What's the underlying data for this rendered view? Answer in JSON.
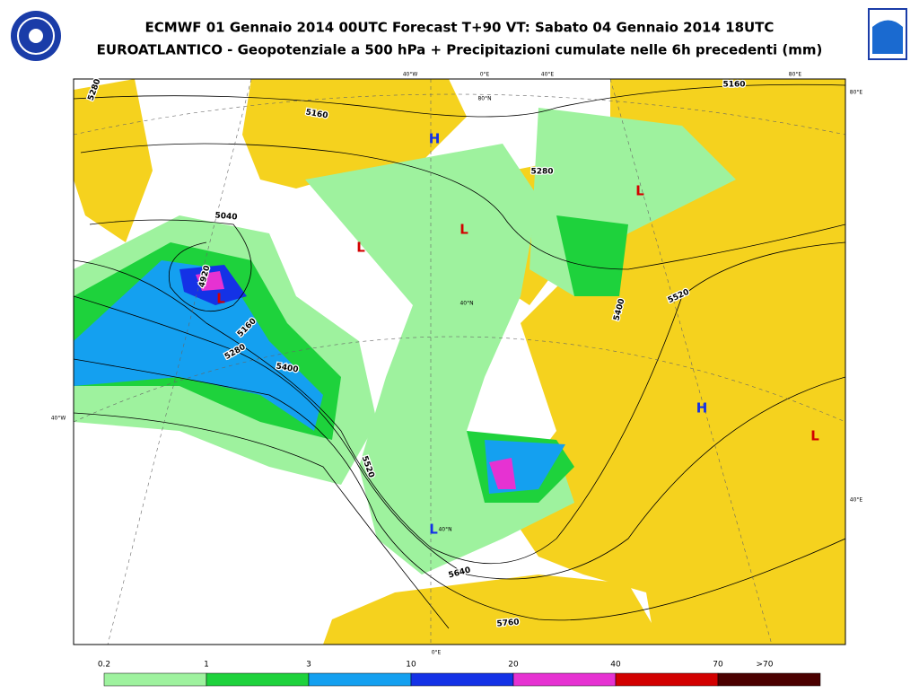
{
  "header": {
    "title": "ECMWF 01 Gennaio 2014 00UTC Forecast T+90 VT: Sabato 04 Gennaio 2014 18UTC",
    "subtitle": "EUROATLANTICO - Geopotenziale a 500 hPa + Precipitazioni cumulate nelle 6h precedenti (mm)"
  },
  "map": {
    "contour_labels": [
      "5280",
      "5160",
      "5040",
      "4920",
      "5160",
      "5280",
      "5400",
      "5520",
      "5640",
      "5760",
      "5520",
      "5400",
      "5280",
      "5160"
    ],
    "pressure_centers": [
      "H",
      "L",
      "L",
      "L",
      "L",
      "H",
      "L",
      "L"
    ],
    "grid_labels": [
      "40°W",
      "0°E",
      "40°E",
      "80°E",
      "80°E",
      "80°N",
      "40°N",
      "40°W",
      "40°E",
      "40°N",
      "0°E"
    ]
  },
  "legend": {
    "labels": [
      "0.2",
      "1",
      "3",
      "10",
      "20",
      "40",
      "70",
      ">70"
    ],
    "colors": [
      "#9ef29e",
      "#1ed23c",
      "#14a0f0",
      "#1432e6",
      "#e632d2",
      "#d20000",
      "#4b0000"
    ]
  }
}
